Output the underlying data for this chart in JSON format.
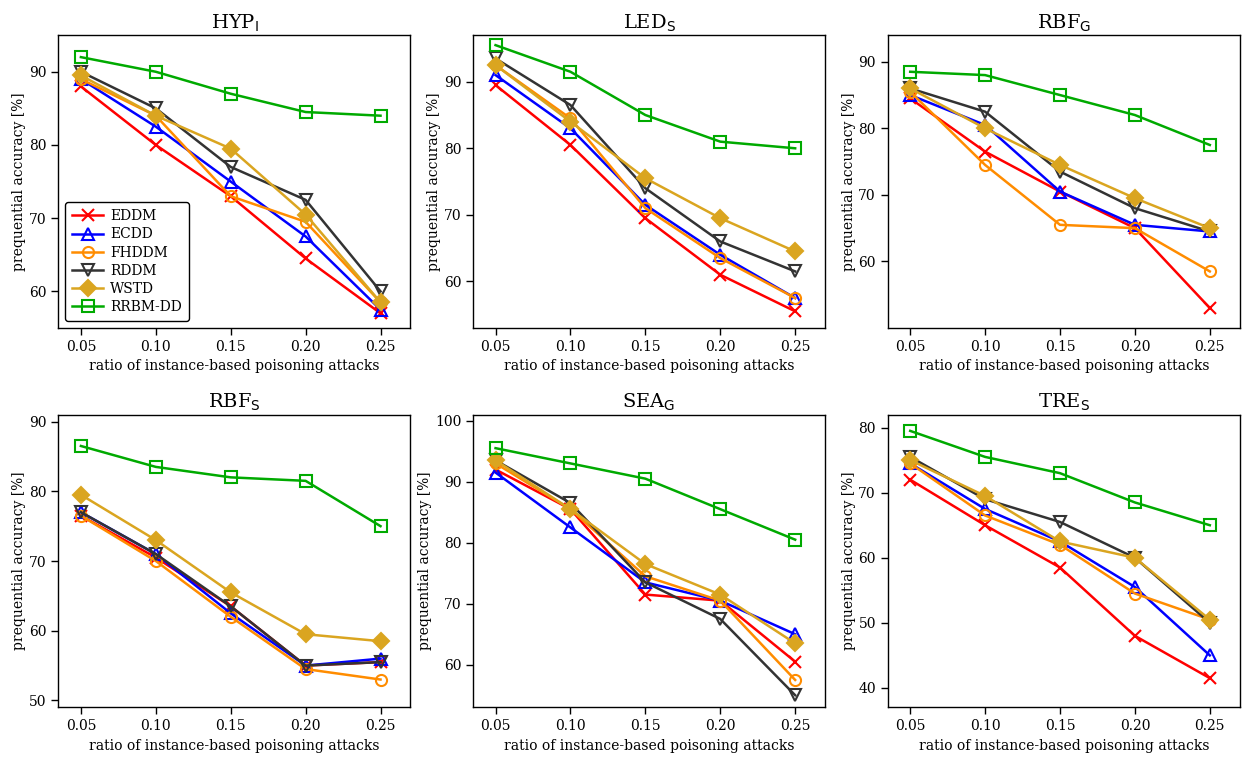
{
  "x": [
    0.05,
    0.1,
    0.15,
    0.2,
    0.25
  ],
  "plots": [
    {
      "title_raw": "HYP_I",
      "ylim": [
        55,
        95
      ],
      "yticks": [
        60,
        70,
        80,
        90
      ],
      "series": {
        "EDDM": [
          88.0,
          80.0,
          73.0,
          64.5,
          57.0
        ],
        "ECDD": [
          89.0,
          82.5,
          75.0,
          67.5,
          57.5
        ],
        "FHDDM": [
          89.0,
          84.0,
          73.0,
          69.5,
          58.5
        ],
        "RDDM": [
          90.0,
          85.0,
          77.0,
          72.5,
          60.0
        ],
        "WSTD": [
          89.5,
          84.0,
          79.5,
          70.5,
          58.5
        ],
        "RRBM-DD": [
          92.0,
          90.0,
          87.0,
          84.5,
          84.0
        ]
      }
    },
    {
      "title_raw": "LED_S",
      "ylim": [
        53,
        97
      ],
      "yticks": [
        60,
        70,
        80,
        90
      ],
      "series": {
        "EDDM": [
          89.5,
          80.5,
          69.5,
          61.0,
          55.5
        ],
        "ECDD": [
          91.0,
          83.0,
          71.5,
          64.0,
          57.5
        ],
        "FHDDM": [
          92.5,
          84.5,
          71.0,
          63.5,
          57.5
        ],
        "RDDM": [
          93.5,
          86.5,
          74.0,
          66.0,
          61.5
        ],
        "WSTD": [
          92.5,
          84.0,
          75.5,
          69.5,
          64.5
        ],
        "RRBM-DD": [
          95.5,
          91.5,
          85.0,
          81.0,
          80.0
        ]
      }
    },
    {
      "title_raw": "RBF_G",
      "ylim": [
        50,
        94
      ],
      "yticks": [
        60,
        70,
        80,
        90
      ],
      "series": {
        "EDDM": [
          84.5,
          76.5,
          70.5,
          65.0,
          53.0
        ],
        "ECDD": [
          85.0,
          80.5,
          70.5,
          65.5,
          64.5
        ],
        "FHDDM": [
          85.5,
          74.5,
          65.5,
          65.0,
          58.5
        ],
        "RDDM": [
          86.0,
          82.5,
          73.5,
          68.0,
          64.5
        ],
        "WSTD": [
          86.0,
          80.0,
          74.5,
          69.5,
          65.0
        ],
        "RRBM-DD": [
          88.5,
          88.0,
          85.0,
          82.0,
          77.5
        ]
      }
    },
    {
      "title_raw": "RBF_S",
      "ylim": [
        49,
        91
      ],
      "yticks": [
        50,
        60,
        70,
        80,
        90
      ],
      "series": {
        "EDDM": [
          76.5,
          70.5,
          63.5,
          55.0,
          55.5
        ],
        "ECDD": [
          77.0,
          71.0,
          62.5,
          55.0,
          56.0
        ],
        "FHDDM": [
          76.5,
          70.0,
          62.0,
          54.5,
          53.0
        ],
        "RDDM": [
          77.0,
          71.0,
          63.5,
          55.0,
          55.5
        ],
        "WSTD": [
          79.5,
          73.0,
          65.5,
          59.5,
          58.5
        ],
        "RRBM-DD": [
          86.5,
          83.5,
          82.0,
          81.5,
          75.0
        ]
      }
    },
    {
      "title_raw": "SEA_G",
      "ylim": [
        53,
        101
      ],
      "yticks": [
        60,
        70,
        80,
        90,
        100
      ],
      "series": {
        "EDDM": [
          92.0,
          85.5,
          71.5,
          70.5,
          60.5
        ],
        "ECDD": [
          91.5,
          82.5,
          73.5,
          70.5,
          65.0
        ],
        "FHDDM": [
          93.0,
          85.5,
          74.5,
          70.5,
          57.5
        ],
        "RDDM": [
          93.5,
          86.5,
          73.5,
          67.5,
          55.0
        ],
        "WSTD": [
          93.5,
          85.5,
          76.5,
          71.5,
          63.5
        ],
        "RRBM-DD": [
          95.5,
          93.0,
          90.5,
          85.5,
          80.5
        ]
      }
    },
    {
      "title_raw": "TRE_S",
      "ylim": [
        37,
        82
      ],
      "yticks": [
        40,
        50,
        60,
        70,
        80
      ],
      "series": {
        "EDDM": [
          72.0,
          65.0,
          58.5,
          48.0,
          41.5
        ],
        "ECDD": [
          74.5,
          67.5,
          62.5,
          55.5,
          45.0
        ],
        "FHDDM": [
          74.5,
          66.5,
          62.0,
          54.5,
          50.5
        ],
        "RDDM": [
          75.5,
          69.0,
          65.5,
          60.0,
          50.0
        ],
        "WSTD": [
          75.0,
          69.5,
          62.5,
          60.0,
          50.5
        ],
        "RRBM-DD": [
          79.5,
          75.5,
          73.0,
          68.5,
          65.0
        ]
      }
    }
  ],
  "colors": {
    "EDDM": "#FF0000",
    "ECDD": "#0000FF",
    "FHDDM": "#FF8C00",
    "RDDM": "#333333",
    "WSTD": "#DAA520",
    "RRBM-DD": "#00AA00"
  },
  "markers": {
    "EDDM": "x",
    "ECDD": "^",
    "FHDDM": "o",
    "RDDM": "v",
    "WSTD": "D",
    "RRBM-DD": "s"
  },
  "xlabel": "ratio of instance-based poisoning attacks",
  "ylabel": "prequential accuracy [%]"
}
